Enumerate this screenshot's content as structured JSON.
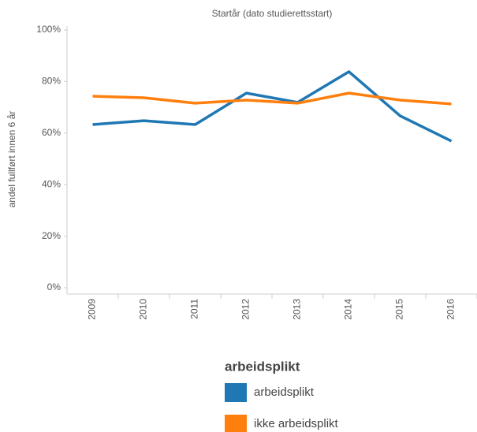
{
  "chart_data": {
    "type": "line",
    "title": "Startår (dato studierettsstart)",
    "y_label": "andel fullført innen 6 år",
    "legend_title": "arbeidsplikt",
    "categories": [
      "2009",
      "2010",
      "2011",
      "2012",
      "2013",
      "2014",
      "2015",
      "2016"
    ],
    "series": [
      {
        "name": "arbeidsplikt",
        "color": "#1f77b4",
        "values": [
          63.3,
          64.8,
          63.3,
          75.5,
          71.9,
          83.8,
          66.7,
          56.9
        ]
      },
      {
        "name": "ikke arbeidsplikt",
        "color": "#ff7f0e",
        "values": [
          74.3,
          73.7,
          71.6,
          72.8,
          71.6,
          75.5,
          72.8,
          71.3
        ]
      }
    ],
    "ylim": [
      0,
      100
    ],
    "yticks": [
      {
        "value": 0,
        "label": "0%"
      },
      {
        "value": 20,
        "label": "20%"
      },
      {
        "value": 40,
        "label": "40%"
      },
      {
        "value": 60,
        "label": "60%"
      },
      {
        "value": 80,
        "label": "80%"
      },
      {
        "value": 100,
        "label": "100%"
      }
    ]
  }
}
